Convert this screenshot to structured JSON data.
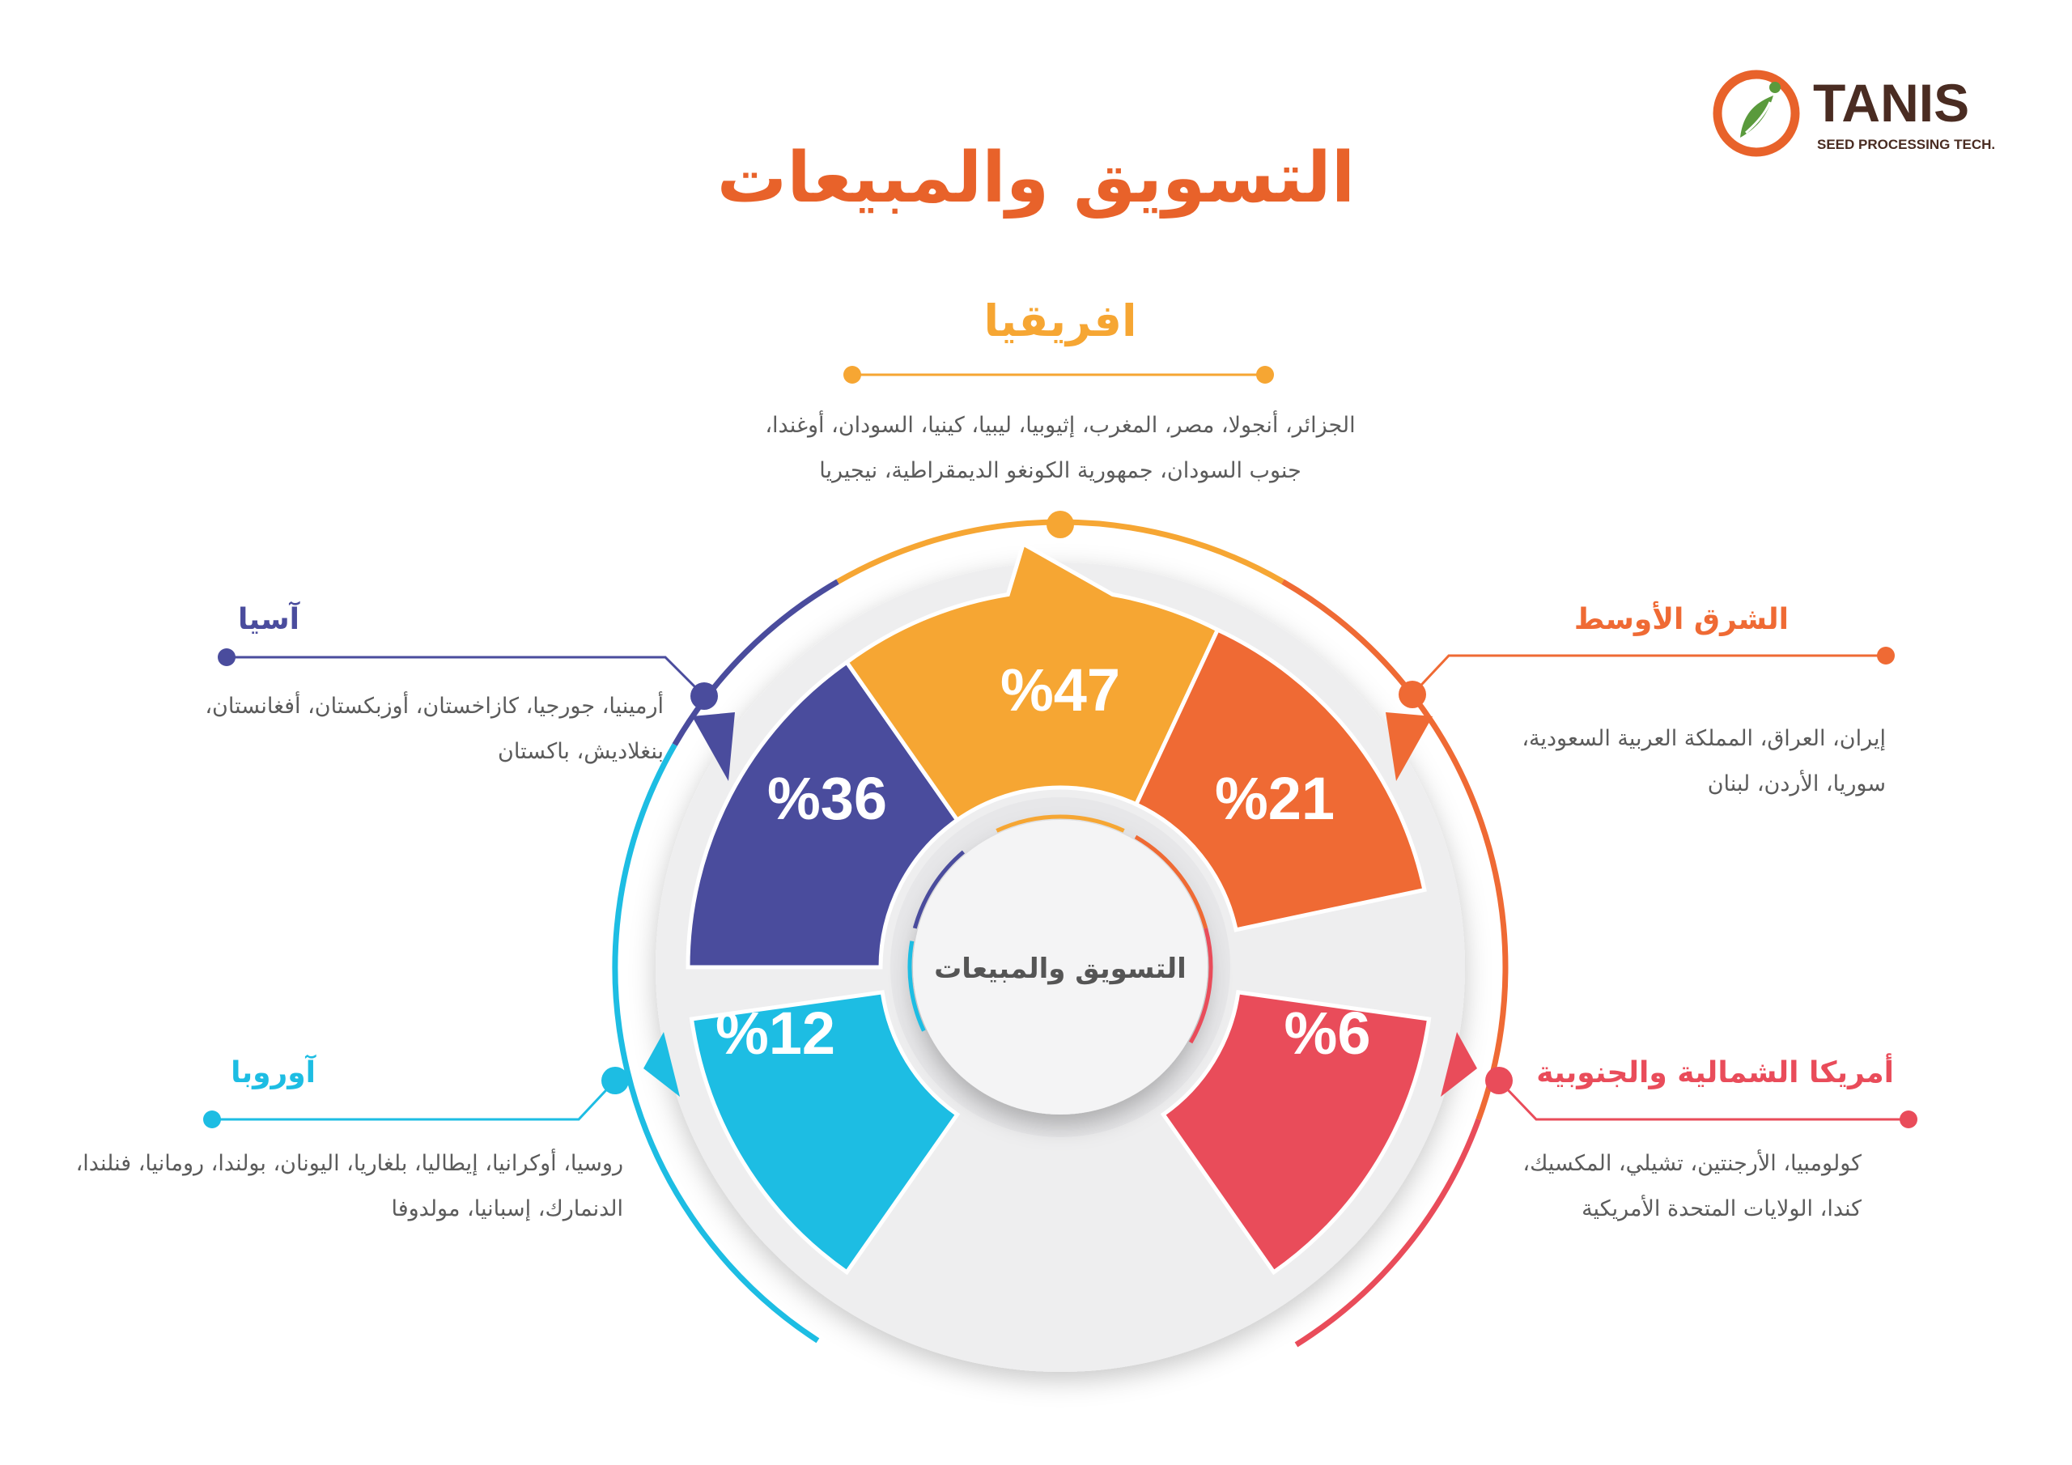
{
  "title": "التسويق والمبيعات",
  "center_label": "التسويق والمبيعات",
  "logo": {
    "name": "TANIS",
    "tagline": "SEED PROCESSING TECH.",
    "colors": {
      "ring": "#e8622a",
      "leaf": "#5a9a3c",
      "text": "#4a2c22"
    }
  },
  "colors": {
    "title": "#e8622a",
    "africa": "#f6a633",
    "middle_east": "#ef6a34",
    "americas": "#e94c5a",
    "europe": "#1dbde3",
    "asia": "#4a4c9d",
    "ring_bg": "#eeeeef"
  },
  "regions": {
    "africa": {
      "name": "افريقيا",
      "percent": "%47",
      "countries_line1": "الجزائر، أنجولا، مصر، المغرب، إثيوبيا، ليبيا، كينيا، السودان، أوغندا،",
      "countries_line2": "جنوب السودان، جمهورية الكونغو الديمقراطية، نيجيريا"
    },
    "middle_east": {
      "name": "الشرق الأوسط",
      "percent": "%21",
      "countries_line1": "إيران، العراق، المملكة العربية السعودية،",
      "countries_line2": "سوريا، الأردن، لبنان"
    },
    "americas": {
      "name": "أمريكا الشمالية والجنوبية",
      "percent": "%6",
      "countries_line1": "كولومبيا، الأرجنتين، تشيلي، المكسيك،",
      "countries_line2": "كندا، الولايات المتحدة الأمريكية"
    },
    "europe": {
      "name": "آوروبا",
      "percent": "%12",
      "countries_line1": "روسيا، أوكرانيا، إيطاليا، بلغاريا، اليونان، بولندا، رومانيا، فنلندا،",
      "countries_line2": "الدنمارك، إسبانيا، مولدوفا"
    },
    "asia": {
      "name": "آسيا",
      "percent": "%36",
      "countries_line1": "أرمينيا، جورجيا، كازاخستان، أوزبكستان، أفغانستان،",
      "countries_line2": "بنغلاديش، باكستان"
    }
  }
}
